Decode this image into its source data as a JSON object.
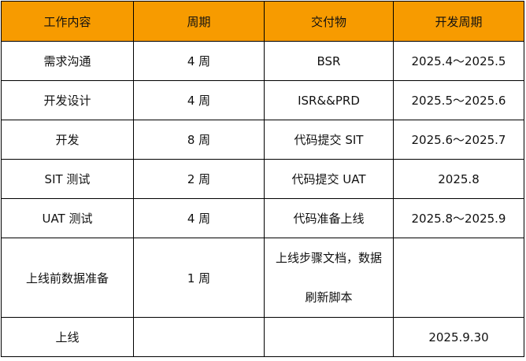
{
  "table": {
    "headers": [
      "工作内容",
      "周期",
      "交付物",
      "开发周期"
    ],
    "rows": [
      {
        "task": "需求沟通",
        "duration": "4 周",
        "deliverable": "BSR",
        "schedule": "2025.4～2025.5"
      },
      {
        "task": "开发设计",
        "duration": "4 周",
        "deliverable": "ISR&&PRD",
        "schedule": "2025.5～2025.6"
      },
      {
        "task": "开发",
        "duration": "8 周",
        "deliverable": "代码提交 SIT",
        "schedule": "2025.6～2025.7"
      },
      {
        "task": "SIT 测试",
        "duration": "2 周",
        "deliverable": "代码提交 UAT",
        "schedule": "2025.8"
      },
      {
        "task": "UAT 测试",
        "duration": "4 周",
        "deliverable": "代码准备上线",
        "schedule": "2025.8～2025.9"
      },
      {
        "task": "上线前数据准备",
        "duration": "1 周",
        "deliverable_lines": [
          "上线步骤文档，数据",
          "刷新脚本"
        ],
        "schedule": ""
      },
      {
        "task": "上线",
        "duration": "",
        "deliverable": "",
        "schedule": "2025.9.30"
      }
    ]
  }
}
